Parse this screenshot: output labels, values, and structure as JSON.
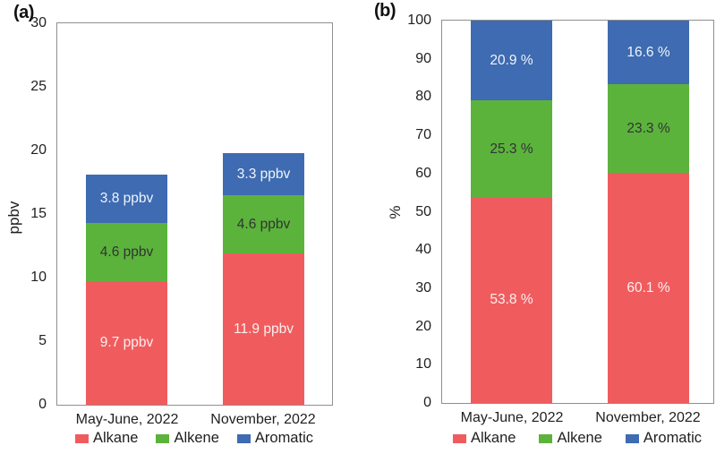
{
  "figure": {
    "background": "#ffffff"
  },
  "chart_data": [
    {
      "type": "bar",
      "stacked": true,
      "panel_tag": "(a)",
      "title": "",
      "xlabel": "",
      "ylabel": "ppbv",
      "ylim": [
        0,
        30
      ],
      "yticks": [
        0,
        5,
        10,
        15,
        20,
        25,
        30
      ],
      "grid": false,
      "legend_position": "bottom",
      "categories": [
        "May-June, 2022",
        "November, 2022"
      ],
      "series": [
        {
          "name": "Alkane",
          "color": "#F05C5E",
          "label_color": "#FCEFEF",
          "values": [
            9.7,
            11.9
          ],
          "data_labels": [
            "9.7 ppbv",
            "11.9 ppbv"
          ]
        },
        {
          "name": "Alkene",
          "color": "#5BB33C",
          "label_color": "#333333",
          "values": [
            4.6,
            4.6
          ],
          "data_labels": [
            "4.6 ppbv",
            "4.6 ppbv"
          ]
        },
        {
          "name": "Aromatic",
          "color": "#3E6BB1",
          "label_color": "#F0F4FB",
          "values": [
            3.8,
            3.3
          ],
          "data_labels": [
            "3.8 ppbv",
            "3.3 ppbv"
          ]
        }
      ]
    },
    {
      "type": "bar",
      "stacked": true,
      "panel_tag": "(b)",
      "title": "",
      "xlabel": "",
      "ylabel": "%",
      "ylim": [
        0,
        100
      ],
      "yticks": [
        0,
        10,
        20,
        30,
        40,
        50,
        60,
        70,
        80,
        90,
        100
      ],
      "grid": false,
      "legend_position": "bottom",
      "categories": [
        "May-June, 2022",
        "November, 2022"
      ],
      "series": [
        {
          "name": "Alkane",
          "color": "#F05C5E",
          "label_color": "#FCEFEF",
          "values": [
            53.8,
            60.1
          ],
          "data_labels": [
            "53.8 %",
            "60.1 %"
          ]
        },
        {
          "name": "Alkene",
          "color": "#5BB33C",
          "label_color": "#333333",
          "values": [
            25.3,
            23.3
          ],
          "data_labels": [
            "25.3 %",
            "23.3 %"
          ]
        },
        {
          "name": "Aromatic",
          "color": "#3E6BB1",
          "label_color": "#F0F4FB",
          "values": [
            20.9,
            16.6
          ],
          "data_labels": [
            "20.9 %",
            "16.6 %"
          ]
        }
      ]
    }
  ]
}
